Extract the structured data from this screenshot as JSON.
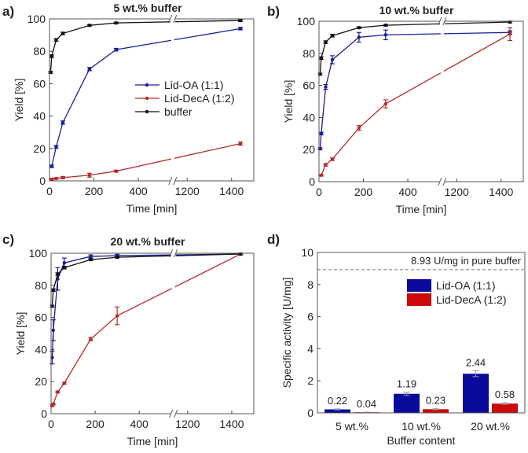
{
  "colors": {
    "oa": "#1c1c96",
    "deca": "#b52a2a",
    "buffer": "#111111",
    "bar_oa": "#0a0a9c",
    "bar_deca": "#cc0a0a"
  },
  "chart_data": [
    {
      "type": "line",
      "panel_label": "a)",
      "title": "5 wt.% buffer",
      "xlabel": "Time [min]",
      "ylabel": "Yield [%]",
      "ylim": [
        0,
        100
      ],
      "y_ticks": [
        0,
        20,
        40,
        60,
        80,
        100
      ],
      "x_ticks": [
        0,
        200,
        400,
        1200,
        1400
      ],
      "x_break": [
        555,
        1135
      ],
      "xlim": [
        0,
        1500
      ],
      "legend": "center-right",
      "series": [
        {
          "name": "Lid-OA (1:1)",
          "color_key": "oa",
          "x": [
            10,
            30,
            60,
            180,
            300,
            1440
          ],
          "y": [
            9,
            21,
            36,
            69,
            81,
            94
          ],
          "err": [
            0.8,
            0.8,
            1,
            1,
            0.8,
            0.8
          ]
        },
        {
          "name": "Lid-DecA (1:2)",
          "color_key": "deca",
          "x": [
            10,
            30,
            60,
            180,
            300,
            1440
          ],
          "y": [
            1,
            1.5,
            2,
            3.5,
            6,
            23
          ],
          "err": [
            0.5,
            0.5,
            0.6,
            1.2,
            0.6,
            1
          ]
        },
        {
          "name": "buffer",
          "color_key": "buffer",
          "x": [
            5,
            10,
            30,
            60,
            180,
            300,
            1440
          ],
          "y": [
            67,
            77,
            87,
            91,
            96,
            97.5,
            99
          ],
          "err": [
            0.6,
            0.8,
            0.8,
            0.8,
            0.5,
            0.5,
            0.6
          ]
        }
      ]
    },
    {
      "type": "line",
      "panel_label": "b)",
      "title": "10 wt.% buffer",
      "xlabel": "Time [min]",
      "ylabel": "Yield [%]",
      "ylim": [
        0,
        100
      ],
      "y_ticks": [
        0,
        20,
        40,
        60,
        80,
        100
      ],
      "x_ticks": [
        0,
        200,
        400,
        1200,
        1400
      ],
      "x_break": [
        555,
        1135
      ],
      "xlim": [
        0,
        1500
      ],
      "series": [
        {
          "name": "Lid-OA (1:1)",
          "color_key": "oa",
          "x": [
            5,
            10,
            30,
            60,
            180,
            300,
            1440
          ],
          "y": [
            20.5,
            30,
            59,
            76,
            90,
            91.5,
            93
          ],
          "err": [
            0.6,
            0.8,
            1.5,
            2.5,
            3,
            3,
            1
          ]
        },
        {
          "name": "Lid-DecA (1:2)",
          "color_key": "deca",
          "x": [
            10,
            30,
            60,
            180,
            300,
            1440
          ],
          "y": [
            4,
            10.5,
            14,
            33.5,
            48.5,
            92
          ],
          "err": [
            0.5,
            0.8,
            0.8,
            1.5,
            2.5,
            4
          ]
        },
        {
          "name": "buffer",
          "color_key": "buffer",
          "x": [
            5,
            10,
            30,
            60,
            180,
            300,
            1440
          ],
          "y": [
            67,
            77,
            87,
            91,
            96,
            97.5,
            99.5
          ],
          "err": [
            0.6,
            0.8,
            0.8,
            0.8,
            0.5,
            0.5,
            0.5
          ]
        }
      ]
    },
    {
      "type": "line",
      "panel_label": "c)",
      "title": "20 wt.% buffer",
      "xlabel": "Time [min]",
      "ylabel": "Yield [%]",
      "ylim": [
        0,
        100
      ],
      "y_ticks": [
        0,
        20,
        40,
        60,
        80,
        100
      ],
      "x_ticks": [
        0,
        200,
        400,
        1200,
        1400
      ],
      "x_break": [
        555,
        1135
      ],
      "xlim": [
        0,
        1500
      ],
      "series": [
        {
          "name": "Lid-OA (1:1)",
          "color_key": "oa",
          "x": [
            5,
            10,
            30,
            60,
            180,
            300,
            1440
          ],
          "y": [
            35,
            52,
            84,
            94,
            98,
            98.5,
            99.5
          ],
          "err": [
            4,
            6.5,
            7,
            3,
            1,
            0.8,
            0.5
          ]
        },
        {
          "name": "Lid-DecA (1:2)",
          "color_key": "deca",
          "x": [
            5,
            10,
            30,
            60,
            180,
            300,
            1440
          ],
          "y": [
            5,
            6,
            13.5,
            19,
            46.5,
            61,
            99.5
          ],
          "err": [
            0.5,
            0.5,
            0.6,
            0.6,
            1,
            5.5,
            0.5
          ]
        },
        {
          "name": "buffer",
          "color_key": "buffer",
          "x": [
            5,
            10,
            30,
            60,
            180,
            300,
            1440
          ],
          "y": [
            67,
            77,
            87,
            91,
            96,
            97.5,
            99.5
          ],
          "err": [
            0.6,
            0.8,
            0.8,
            0.8,
            0.5,
            0.5,
            0.5
          ]
        }
      ]
    },
    {
      "type": "bar",
      "panel_label": "d)",
      "xlabel": "Buffer content",
      "ylabel": "Specific activity [U/mg]",
      "ylim": [
        0,
        10
      ],
      "y_ticks": [
        0,
        2,
        4,
        6,
        8,
        10
      ],
      "categories": [
        "5 wt.%",
        "10 wt.%",
        "20 wt.%"
      ],
      "legend": "top-right",
      "reference": {
        "value": 8.93,
        "label": "8.93 U/mg in pure buffer"
      },
      "series": [
        {
          "name": "Lid-OA (1:1)",
          "color_key": "bar_oa",
          "values": [
            0.22,
            1.19,
            2.44
          ],
          "labels": [
            "0.22",
            "1.19",
            "2.44"
          ],
          "err": [
            0.03,
            0.1,
            0.18
          ]
        },
        {
          "name": "Lid-DecA (1:2)",
          "color_key": "bar_deca",
          "values": [
            0.04,
            0.23,
            0.58
          ],
          "labels": [
            "0.04",
            "0.23",
            "0.58"
          ],
          "err": [
            0.01,
            0.03,
            0.05
          ]
        }
      ]
    }
  ]
}
